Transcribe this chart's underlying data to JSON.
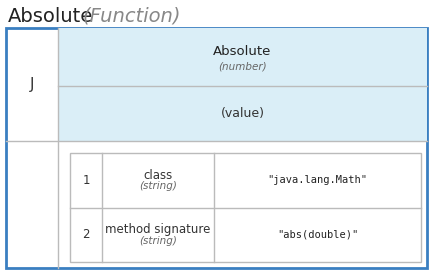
{
  "title": "Absolute",
  "title_italic": "(Function)",
  "outer_border_color": "#3a7fc1",
  "outer_border_lw": 2.0,
  "cell_border_color": "#bbbbbb",
  "light_blue_bg": "#daeef7",
  "white_bg": "#ffffff",
  "J_label": "J",
  "absolute_label": "Absolute",
  "number_label": "(number)",
  "value_label": "(value)",
  "row1_num": "1",
  "row1_name": "class",
  "row1_type": "(string)",
  "row1_val": "\"java.lang.Math\"",
  "row2_num": "2",
  "row2_name": "method signature",
  "row2_type": "(string)",
  "row2_val": "\"abs(double)\"",
  "mono_font": "monospace",
  "normal_font": "sans-serif",
  "title_fontsize": 14,
  "cell_fontsize": 8.5,
  "small_fontsize": 7.5,
  "mono_fontsize": 7.5,
  "fig_w": 4.33,
  "fig_h": 2.74,
  "dpi": 100
}
